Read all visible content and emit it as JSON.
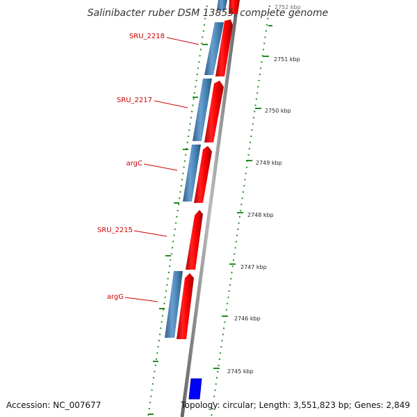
{
  "header": {
    "title": "Salinibacter ruber DSM 13855, complete genome"
  },
  "footer": {
    "accession": "Accession: NC_007677",
    "topology": "Topology: circular; Length: 3,551,823 bp; Genes: 2,849"
  },
  "colors": {
    "forward": "#ff0000",
    "reverse": "#4682b4",
    "rna": "#0000ff",
    "backbone": "#999999",
    "ticks": "#228b22",
    "label_text": "#cc0000",
    "leader": "#cc0000"
  },
  "axis": {
    "unit": "kbp",
    "tick_labels": [
      "2752 kbp",
      "2751 kbp",
      "2750 kbp",
      "2749 kbp",
      "2748 kbp",
      "2747 kbp",
      "2746 kbp",
      "2745 kbp"
    ]
  },
  "gene_labels": [
    "SRU_2218",
    "SRU_2217",
    "argC",
    "SRU_2215",
    "argG"
  ]
}
